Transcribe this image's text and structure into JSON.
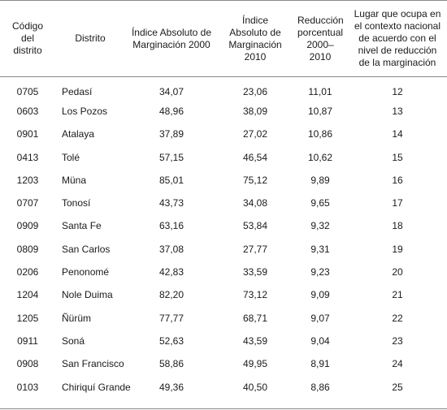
{
  "headers": {
    "codigo": "Código del distrito",
    "distrito": "Distrito",
    "indice2000": "Índice Absoluto de Marginación 2000",
    "indice2010": "Índice Absoluto de Marginación 2010",
    "reduccion": "Reducción porcentual 2000–2010",
    "lugar": "Lugar que ocupa en el contexto nacional de acuerdo con el nivel de reducción de la marginación"
  },
  "rows": [
    {
      "codigo": "0705",
      "distrito": "Pedasí",
      "indice2000": "34,07",
      "indice2010": "23,06",
      "reduccion": "11,01",
      "lugar": "12"
    },
    {
      "codigo": "0603",
      "distrito": "Los Pozos",
      "indice2000": "48,96",
      "indice2010": "38,09",
      "reduccion": "10,87",
      "lugar": "13"
    },
    {
      "codigo": "0901",
      "distrito": "Atalaya",
      "indice2000": "37,89",
      "indice2010": "27,02",
      "reduccion": "10,86",
      "lugar": "14"
    },
    {
      "codigo": "0413",
      "distrito": "Tolé",
      "indice2000": "57,15",
      "indice2010": "46,54",
      "reduccion": "10,62",
      "lugar": "15"
    },
    {
      "codigo": "1203",
      "distrito": "Müna",
      "indice2000": "85,01",
      "indice2010": "75,12",
      "reduccion": "9,89",
      "lugar": "16"
    },
    {
      "codigo": "0707",
      "distrito": "Tonosí",
      "indice2000": "43,73",
      "indice2010": "34,08",
      "reduccion": "9,65",
      "lugar": "17"
    },
    {
      "codigo": "0909",
      "distrito": "Santa Fe",
      "indice2000": "63,16",
      "indice2010": "53,84",
      "reduccion": "9,32",
      "lugar": "18"
    },
    {
      "codigo": "0809",
      "distrito": "San Carlos",
      "indice2000": "37,08",
      "indice2010": "27,77",
      "reduccion": "9,31",
      "lugar": "19"
    },
    {
      "codigo": "0206",
      "distrito": "Penonomé",
      "indice2000": "42,83",
      "indice2010": "33,59",
      "reduccion": "9,23",
      "lugar": "20"
    },
    {
      "codigo": "1204",
      "distrito": "Nole Duima",
      "indice2000": "82,20",
      "indice2010": "73,12",
      "reduccion": "9,09",
      "lugar": "21"
    },
    {
      "codigo": "1205",
      "distrito": "Ñürüm",
      "indice2000": "77,77",
      "indice2010": "68,71",
      "reduccion": "9,07",
      "lugar": "22"
    },
    {
      "codigo": "0911",
      "distrito": "Soná",
      "indice2000": "52,63",
      "indice2010": "43,59",
      "reduccion": "9,04",
      "lugar": "23"
    },
    {
      "codigo": "0908",
      "distrito": "San Francisco",
      "indice2000": "58,86",
      "indice2010": "49,95",
      "reduccion": "8,91",
      "lugar": "24"
    },
    {
      "codigo": "0103",
      "distrito": "Chiriquí Grande",
      "indice2000": "49,36",
      "indice2010": "40,50",
      "reduccion": "8,86",
      "lugar": "25"
    }
  ]
}
